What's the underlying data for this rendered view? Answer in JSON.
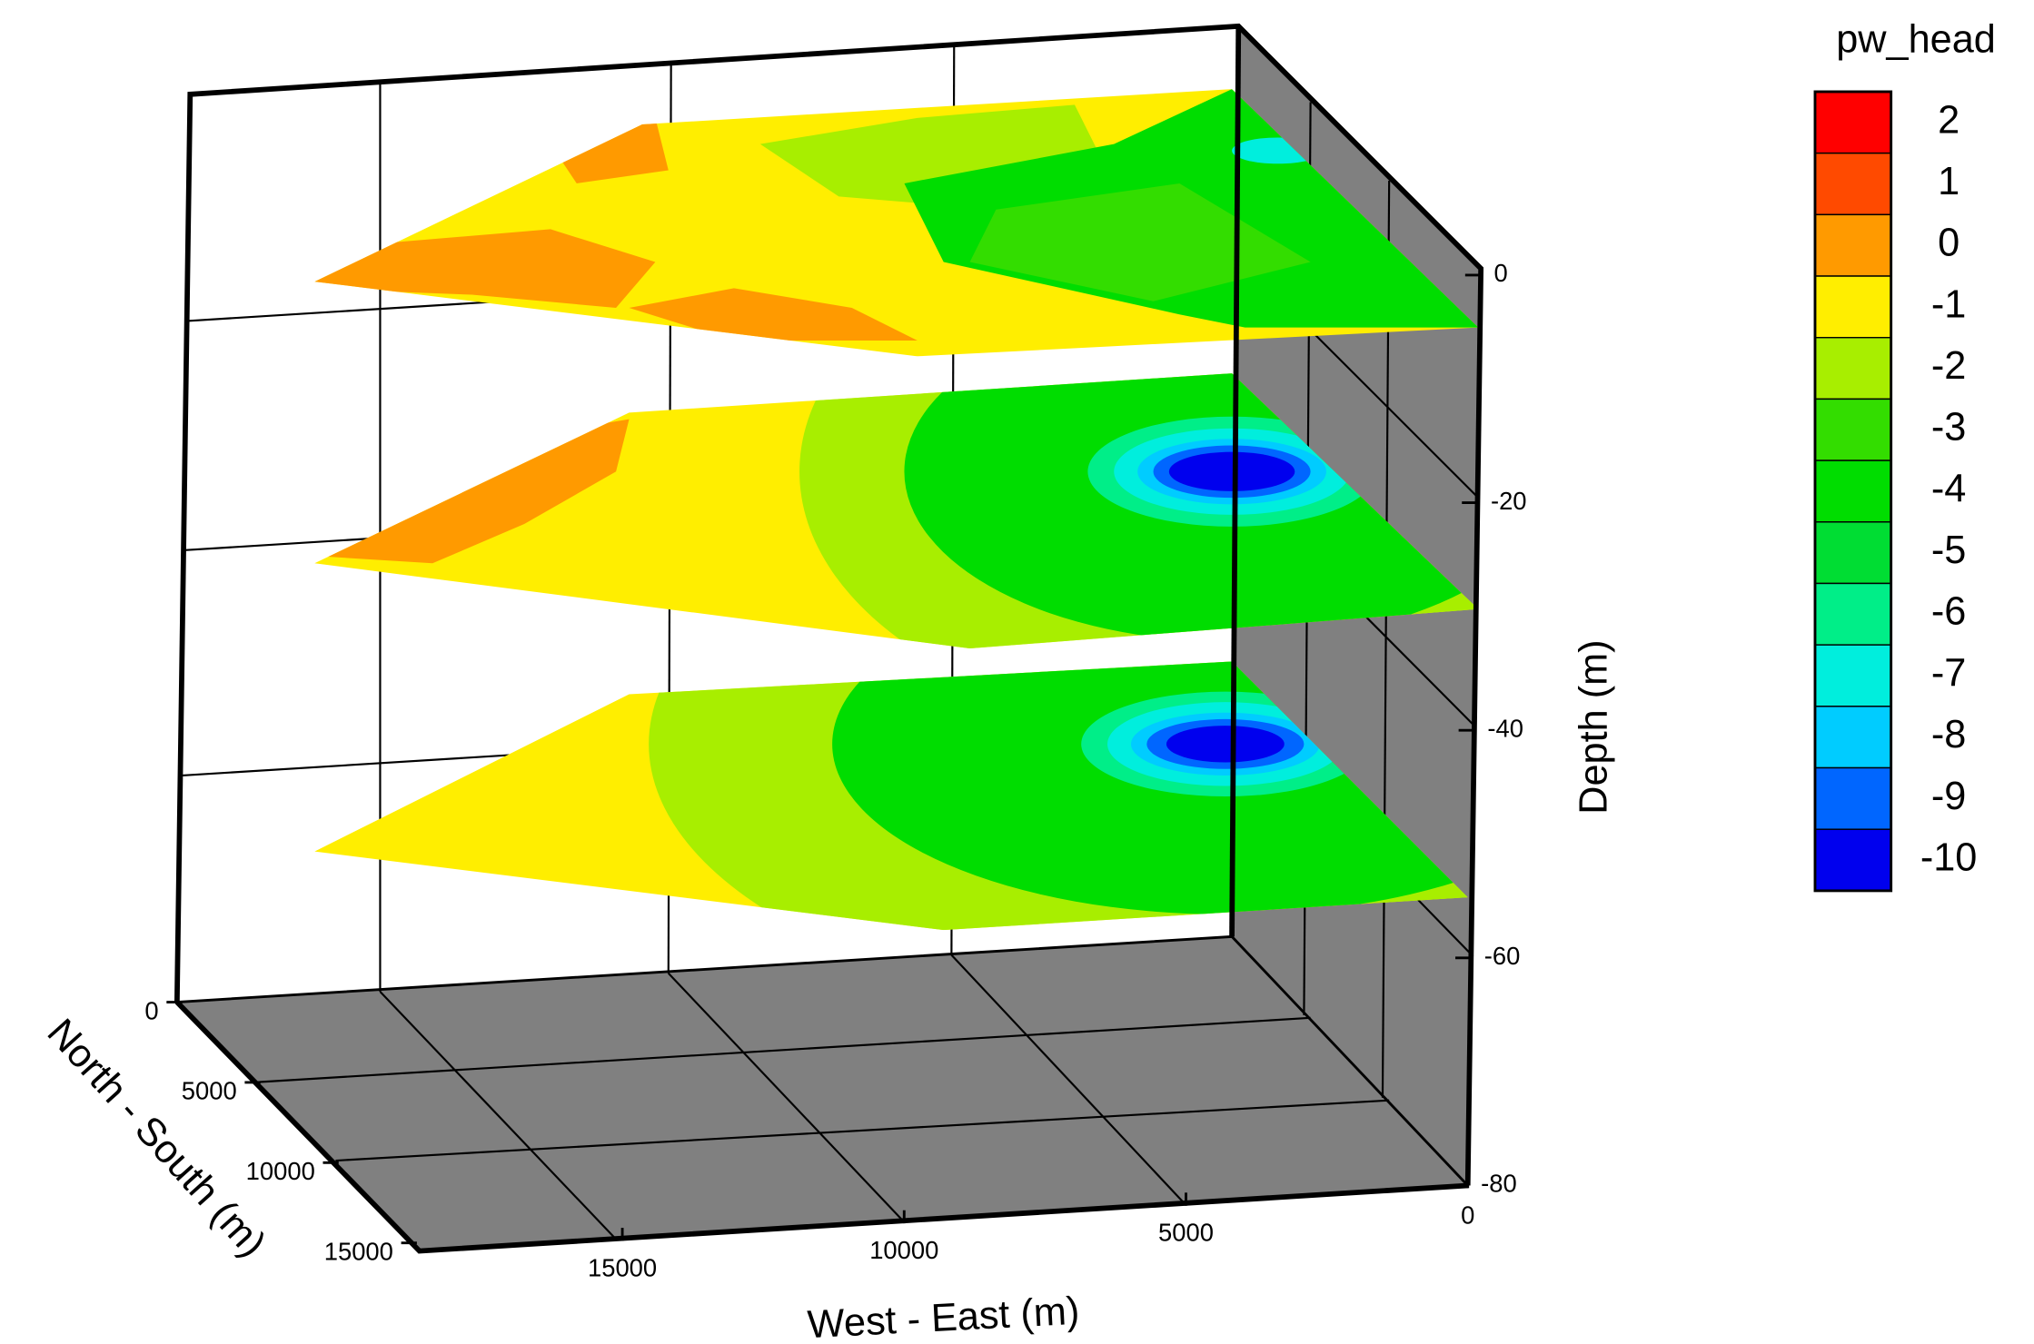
{
  "chart_data": {
    "type": "layered_contour_3d",
    "colorbar_title": "pw_head",
    "levels": [
      2,
      1,
      0,
      -1,
      -2,
      -3,
      -4,
      -5,
      -6,
      -7,
      -8,
      -9,
      -10
    ],
    "colors": [
      "#ff0000",
      "#ff4a00",
      "#ff9a00",
      "#ffee00",
      "#a8ee00",
      "#33dd00",
      "#00dd00",
      "#00dd33",
      "#00ee88",
      "#00eedd",
      "#00ccff",
      "#0066ff",
      "#0000ee"
    ],
    "zlabel": "Depth (m)",
    "xlabel": "West - East (m)",
    "ylabel": "North - South (m)",
    "zlim": [
      -80,
      0
    ],
    "zticks": [
      0,
      -20,
      -40,
      -60,
      -80
    ],
    "xlim": [
      0,
      18600
    ],
    "xticks": [
      15000,
      10000,
      5000,
      0
    ],
    "ylim": [
      0,
      15500
    ],
    "yticks": [
      0,
      5000,
      10000,
      15000
    ]
  }
}
